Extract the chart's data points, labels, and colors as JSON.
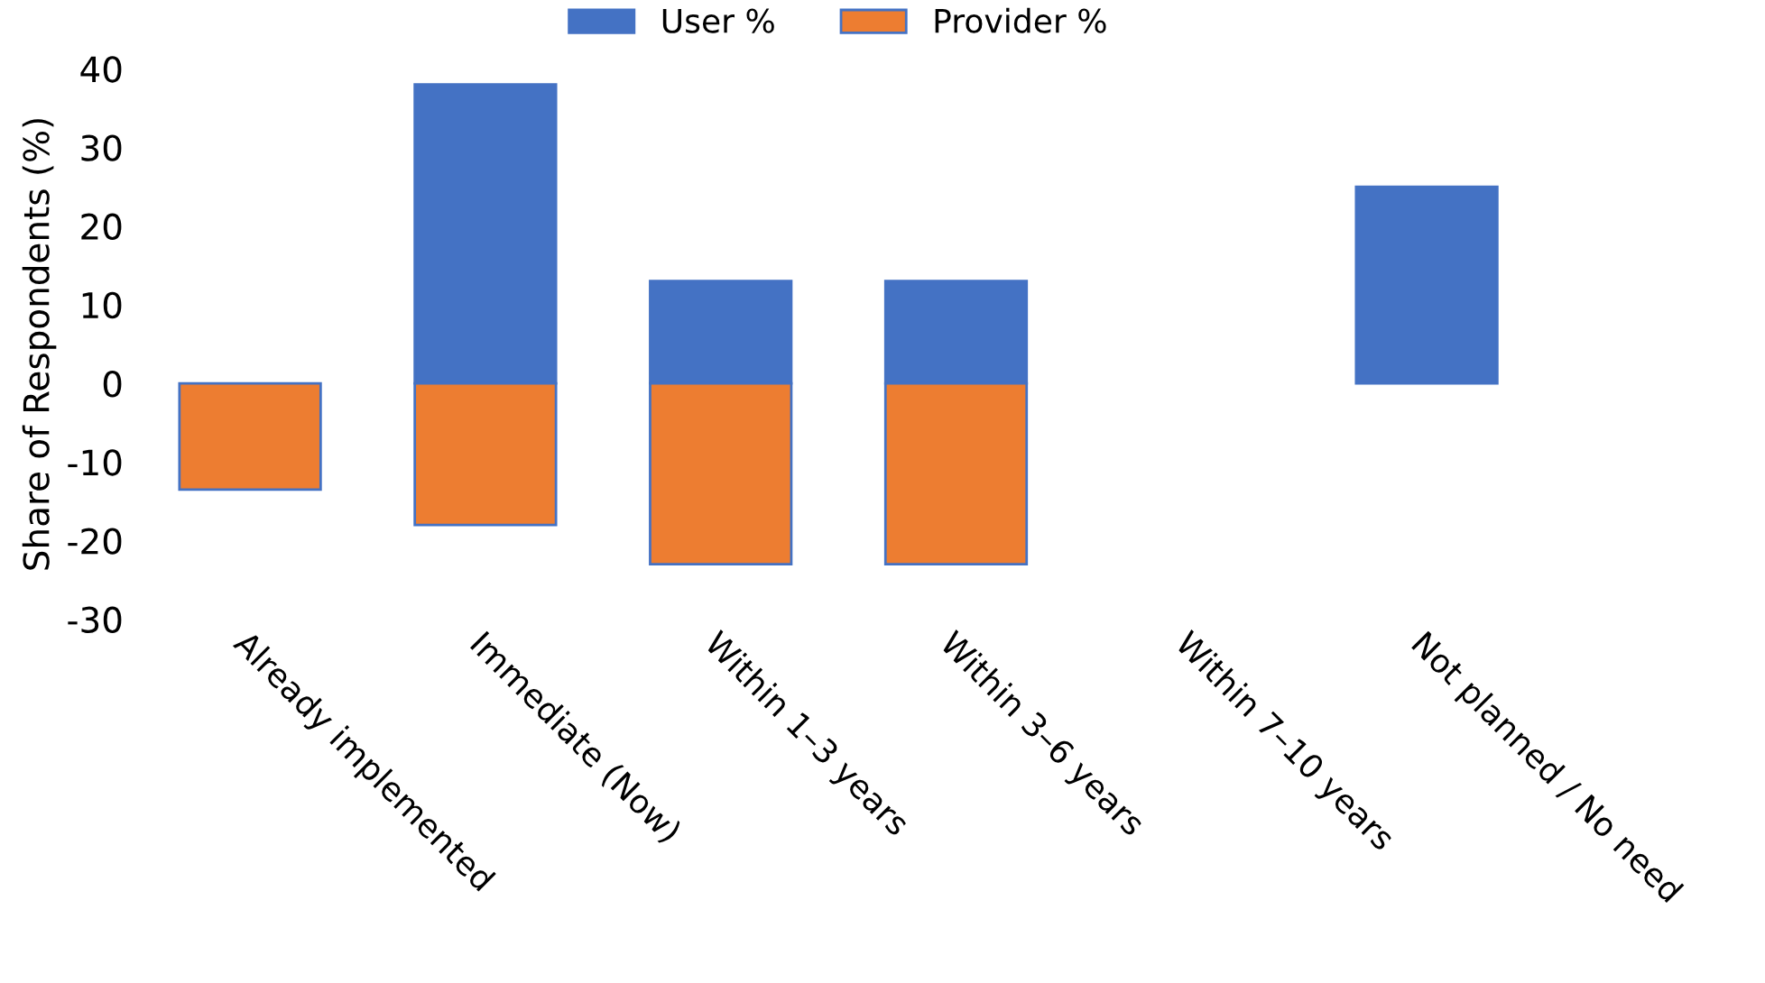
{
  "chart_data": {
    "type": "bar",
    "ylabel": "Share of Respondents (%)",
    "categories": [
      "Already implemented",
      "Immediate (Now)",
      "Within 1–3 years",
      "Within 3–6 years",
      "Within 7–10 years",
      "Not planned / No need"
    ],
    "series": [
      {
        "name": "User %",
        "color": "#4472c4",
        "values": [
          null,
          38,
          13,
          13,
          null,
          25
        ]
      },
      {
        "name": "Provider %",
        "color": "#ed7d31",
        "values": [
          -13.5,
          -18,
          -23,
          -23,
          null,
          null
        ]
      }
    ],
    "stacked": true,
    "ylim": [
      -30,
      40
    ],
    "yticks": [
      -30,
      -20,
      -10,
      0,
      10,
      20,
      30,
      40
    ],
    "grid": false,
    "legend": "top"
  }
}
